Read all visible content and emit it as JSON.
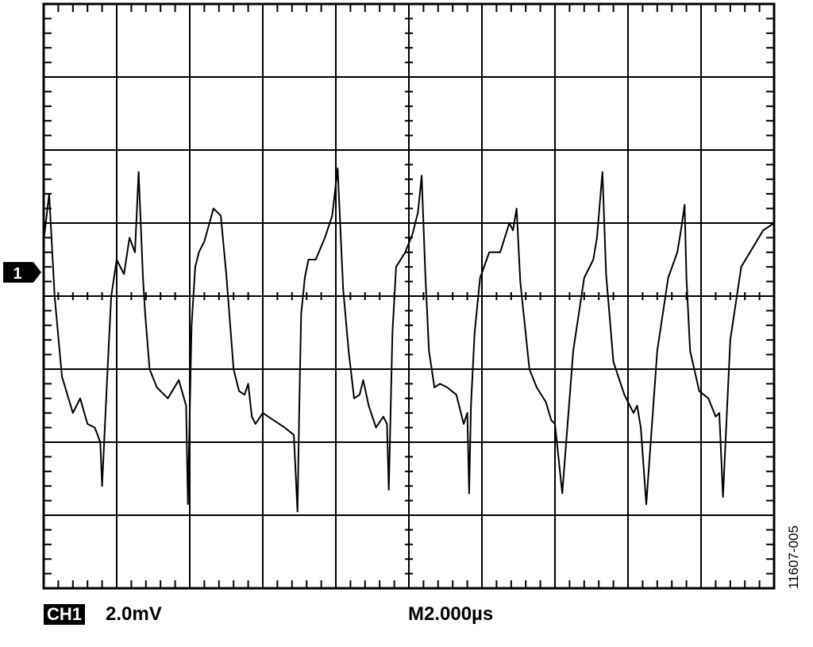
{
  "channel": {
    "badge": "CH1",
    "marker_label": "1",
    "volts_per_div": "2.0mV"
  },
  "timebase": "M2.000µs",
  "figure_id": "11607-005",
  "chart_data": {
    "type": "line",
    "title": "",
    "xlabel": "",
    "ylabel": "",
    "grid": true,
    "x_divisions": 10,
    "y_divisions": 8,
    "x_units_per_div": "2.000µs",
    "y_units_per_div": "2.0mV",
    "xlim": [
      0,
      20
    ],
    "ylim": [
      -7.0,
      9.0
    ],
    "series": [
      {
        "x_unit": "µs",
        "y_unit": "mV",
        "x": [
          0.0,
          0.15,
          0.3,
          0.5,
          0.8,
          1.0,
          1.2,
          1.4,
          1.55,
          1.6,
          1.75,
          1.85,
          2.0,
          2.2,
          2.35,
          2.5,
          2.6,
          2.72,
          2.78,
          2.9,
          3.1,
          3.4,
          3.7,
          3.9,
          3.95,
          4.0,
          4.05,
          4.15,
          4.25,
          4.4,
          4.65,
          4.85,
          5.0,
          5.2,
          5.35,
          5.5,
          5.6,
          5.7,
          5.8,
          6.0,
          6.3,
          6.6,
          6.85,
          6.95,
          7.0,
          7.05,
          7.15,
          7.25,
          7.45,
          7.7,
          7.9,
          8.05,
          8.2,
          8.35,
          8.5,
          8.65,
          8.75,
          8.9,
          9.1,
          9.3,
          9.4,
          9.45,
          9.55,
          9.65,
          9.9,
          10.1,
          10.25,
          10.35,
          10.45,
          10.55,
          10.7,
          10.85,
          11.05,
          11.3,
          11.5,
          11.6,
          11.65,
          11.7,
          11.8,
          11.95,
          12.2,
          12.5,
          12.75,
          12.85,
          12.95,
          13.05,
          13.3,
          13.5,
          13.75,
          13.9,
          14.0,
          14.2,
          14.5,
          14.8,
          15.05,
          15.15,
          15.2,
          15.3,
          15.4,
          15.6,
          15.9,
          16.15,
          16.25,
          16.35,
          16.5,
          16.8,
          17.1,
          17.35,
          17.45,
          17.55,
          17.6,
          17.7,
          17.95,
          18.2,
          18.4,
          18.5,
          18.6,
          18.8,
          19.1,
          19.4,
          19.7,
          20.0
        ],
        "y": [
          2.5,
          3.8,
          1.0,
          -1.2,
          -2.2,
          -1.8,
          -2.5,
          -2.6,
          -3.0,
          -4.2,
          -1.0,
          1.0,
          2.0,
          1.6,
          2.6,
          2.2,
          4.4,
          1.5,
          0.5,
          -1.0,
          -1.5,
          -1.8,
          -1.3,
          -2.0,
          -4.7,
          -2.2,
          0.2,
          1.8,
          2.2,
          2.5,
          3.4,
          3.2,
          1.6,
          -1.0,
          -1.6,
          -1.7,
          -1.4,
          -2.3,
          -2.5,
          -2.2,
          -2.4,
          -2.6,
          -2.8,
          -4.9,
          -2.0,
          0.5,
          1.5,
          2.0,
          2.0,
          2.6,
          3.2,
          4.5,
          1.2,
          -0.5,
          -1.8,
          -1.7,
          -1.3,
          -2.0,
          -2.6,
          -2.3,
          -2.5,
          -4.3,
          0.0,
          1.8,
          2.2,
          2.7,
          3.3,
          4.3,
          1.6,
          -0.5,
          -1.5,
          -1.4,
          -1.5,
          -1.7,
          -2.5,
          -2.2,
          -4.4,
          -2.0,
          0.0,
          1.5,
          2.2,
          2.2,
          3.0,
          2.8,
          3.4,
          1.4,
          -1.0,
          -1.5,
          -1.9,
          -2.4,
          -2.5,
          -4.4,
          -0.5,
          1.5,
          2.0,
          2.6,
          3.2,
          4.4,
          1.6,
          -0.8,
          -1.7,
          -2.2,
          -2.0,
          -2.6,
          -4.7,
          -0.5,
          1.5,
          2.2,
          2.8,
          3.5,
          1.5,
          -0.5,
          -1.6,
          -1.8,
          -2.3,
          -2.2,
          -4.5,
          -0.2,
          1.8,
          2.3,
          2.8,
          3.0
        ]
      }
    ]
  }
}
